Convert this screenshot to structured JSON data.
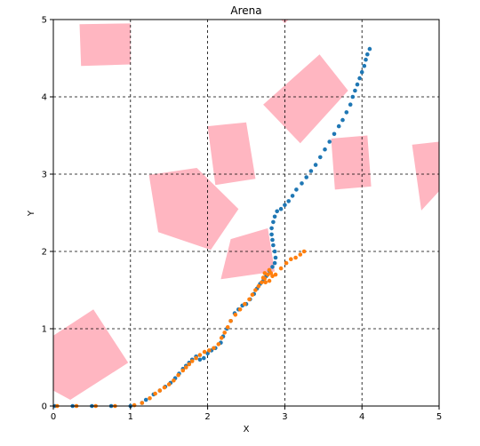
{
  "chart_data": {
    "type": "scatter",
    "title": "Arena",
    "xlabel": "X",
    "ylabel": "Y",
    "xlim": [
      0,
      5
    ],
    "ylim": [
      0,
      5
    ],
    "xticks": [
      "0",
      "1",
      "2",
      "3",
      "4",
      "5"
    ],
    "yticks": [
      "0",
      "1",
      "2",
      "3",
      "4",
      "5"
    ],
    "grid": true,
    "grid_style": "dashed",
    "obstacle_color": "#ffb6c1",
    "obstacles": [
      [
        [
          0.34,
          4.94
        ],
        [
          1.0,
          4.95
        ],
        [
          1.0,
          4.42
        ],
        [
          0.36,
          4.4
        ]
      ],
      [
        [
          3.45,
          4.55
        ],
        [
          3.82,
          4.08
        ],
        [
          3.2,
          3.4
        ],
        [
          2.72,
          3.9
        ]
      ],
      [
        [
          2.0,
          3.62
        ],
        [
          2.5,
          3.67
        ],
        [
          2.62,
          2.94
        ],
        [
          2.1,
          2.86
        ]
      ],
      [
        [
          3.6,
          3.46
        ],
        [
          4.07,
          3.5
        ],
        [
          4.12,
          2.84
        ],
        [
          3.65,
          2.8
        ]
      ],
      [
        [
          4.65,
          3.38
        ],
        [
          5.0,
          3.42
        ],
        [
          5.0,
          2.78
        ],
        [
          4.77,
          2.53
        ]
      ],
      [
        [
          1.24,
          2.99
        ],
        [
          1.86,
          3.08
        ],
        [
          2.4,
          2.55
        ],
        [
          2.04,
          2.02
        ],
        [
          1.36,
          2.25
        ]
      ],
      [
        [
          2.3,
          2.16
        ],
        [
          2.78,
          2.3
        ],
        [
          2.87,
          1.74
        ],
        [
          2.17,
          1.64
        ]
      ],
      [
        [
          0.0,
          0.91
        ],
        [
          0.52,
          1.25
        ],
        [
          0.97,
          0.56
        ],
        [
          0.22,
          0.08
        ],
        [
          0.0,
          0.2
        ]
      ],
      [
        [
          2.95,
          5.0
        ],
        [
          3.05,
          5.0
        ],
        [
          3.0,
          4.95
        ]
      ]
    ],
    "series": [
      {
        "color": "#1f77b4",
        "x": [
          0.02,
          0.25,
          0.5,
          0.75,
          1.0,
          1.15,
          1.2,
          1.3,
          1.38,
          1.45,
          1.52,
          1.58,
          1.63,
          1.68,
          1.72,
          1.76,
          1.8,
          1.85,
          1.9,
          1.95,
          2.0,
          2.05,
          2.1,
          2.17,
          2.2,
          2.25,
          2.3,
          2.35,
          2.4,
          2.45,
          2.5,
          2.55,
          2.6,
          2.64,
          2.68,
          2.72,
          2.76,
          2.8,
          2.84,
          2.87,
          2.88,
          2.87,
          2.85,
          2.84,
          2.83,
          2.83,
          2.85,
          2.87,
          2.9,
          2.95,
          3.0,
          3.05,
          3.1,
          3.15,
          3.22,
          3.28,
          3.34,
          3.4,
          3.46,
          3.52,
          3.58,
          3.64,
          3.7,
          3.75,
          3.8,
          3.85,
          3.88,
          3.91,
          3.94,
          3.97,
          4.0,
          4.03,
          4.05,
          4.07,
          4.1
        ],
        "y": [
          0.0,
          0.0,
          0.0,
          0.0,
          0.0,
          0.04,
          0.08,
          0.15,
          0.2,
          0.25,
          0.3,
          0.36,
          0.42,
          0.48,
          0.52,
          0.56,
          0.6,
          0.64,
          0.6,
          0.62,
          0.68,
          0.72,
          0.75,
          0.82,
          0.9,
          1.0,
          1.1,
          1.2,
          1.25,
          1.3,
          1.32,
          1.38,
          1.45,
          1.52,
          1.58,
          1.62,
          1.68,
          1.75,
          1.8,
          1.85,
          1.92,
          2.0,
          2.08,
          2.15,
          2.22,
          2.3,
          2.38,
          2.45,
          2.52,
          2.55,
          2.6,
          2.65,
          2.72,
          2.8,
          2.88,
          2.96,
          3.04,
          3.12,
          3.22,
          3.32,
          3.42,
          3.52,
          3.62,
          3.7,
          3.8,
          3.9,
          4.0,
          4.08,
          4.16,
          4.24,
          4.32,
          4.4,
          4.48,
          4.55,
          4.62
        ]
      },
      {
        "color": "#ff7f0e",
        "x": [
          0.05,
          0.3,
          0.55,
          0.8,
          1.05,
          1.15,
          1.25,
          1.32,
          1.38,
          1.44,
          1.5,
          1.56,
          1.62,
          1.68,
          1.72,
          1.76,
          1.8,
          1.85,
          1.9,
          1.96,
          2.02,
          2.08,
          2.14,
          2.18,
          2.22,
          2.26,
          2.3,
          2.36,
          2.42,
          2.48,
          2.54,
          2.58,
          2.62,
          2.66,
          2.7,
          2.74,
          2.78,
          2.82,
          2.84,
          2.8,
          2.75,
          2.72,
          2.74,
          2.8,
          2.88,
          2.95,
          3.02,
          3.08,
          3.14,
          3.2,
          3.25
        ],
        "y": [
          0.0,
          0.0,
          0.0,
          0.0,
          0.01,
          0.04,
          0.1,
          0.16,
          0.2,
          0.24,
          0.28,
          0.33,
          0.4,
          0.46,
          0.5,
          0.54,
          0.58,
          0.62,
          0.66,
          0.7,
          0.72,
          0.75,
          0.8,
          0.88,
          0.95,
          1.02,
          1.1,
          1.18,
          1.25,
          1.32,
          1.38,
          1.44,
          1.5,
          1.55,
          1.6,
          1.65,
          1.7,
          1.72,
          1.68,
          1.62,
          1.6,
          1.66,
          1.72,
          1.76,
          1.7,
          1.78,
          1.85,
          1.9,
          1.92,
          1.96,
          2.0
        ]
      }
    ]
  }
}
